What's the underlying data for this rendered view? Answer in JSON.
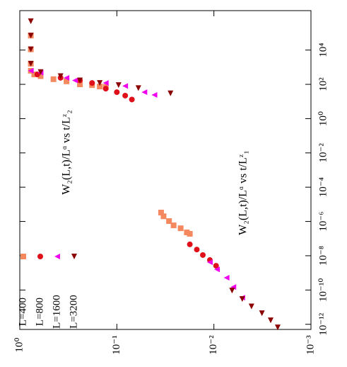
{
  "chart_data": {
    "type": "scatter",
    "xlog": true,
    "ylog": true,
    "annotations": [
      "W₂(L,t)/Lᵅ  vs  t/Lᶻ₂",
      "W₂(L,t)/Lᵅ  vs  t/Lᶻ₁"
    ],
    "xlim": [
      5e-13,
      2000000
    ],
    "ylim": [
      1,
      0.001
    ],
    "xticks": [
      {
        "value": 1e-12,
        "label": "10⁻¹²"
      },
      {
        "value": 1e-10,
        "label": "10⁻¹⁰"
      },
      {
        "value": 1e-08,
        "label": "10⁻⁸"
      },
      {
        "value": 1e-06,
        "label": "10⁻⁶"
      },
      {
        "value": 0.0001,
        "label": "10⁻⁴"
      },
      {
        "value": 0.01,
        "label": "10⁻²"
      },
      {
        "value": 1,
        "label": "10⁰"
      },
      {
        "value": 100,
        "label": "10²"
      },
      {
        "value": 10000,
        "label": "10⁴"
      }
    ],
    "yticks": [
      {
        "value": 1,
        "label": "10⁰"
      },
      {
        "value": 0.1,
        "label": "10⁻¹"
      },
      {
        "value": 0.01,
        "label": "10⁻²"
      },
      {
        "value": 0.001,
        "label": "10⁻³"
      }
    ],
    "series": [
      {
        "name": "L=400",
        "color": "#f4895f",
        "marker": "square",
        "x": [
          3.3e-06,
          2e-06,
          1.05e-06,
          5.9e-07,
          4e-07,
          2.3e-07,
          1.9e-07,
          70000,
          11000,
          1600,
          620,
          380,
          300,
          200,
          150,
          100,
          90,
          75,
          70
        ],
        "y": [
          0.035,
          0.033,
          0.029,
          0.026,
          0.022,
          0.019,
          0.0177,
          0.77,
          0.77,
          0.77,
          0.77,
          0.71,
          0.61,
          0.45,
          0.33,
          0.24,
          0.18,
          0.15,
          0.13
        ]
      },
      {
        "name": "L=800",
        "color": "#e0101a",
        "marker": "circle",
        "x": [
          4.6e-08,
          2.3e-08,
          1.1e-08,
          5.6e-09,
          2.6e-09,
          380,
          240,
          170,
          120,
          56,
          35,
          22,
          13
        ],
        "y": [
          0.0177,
          0.015,
          0.013,
          0.011,
          0.0095,
          0.66,
          0.38,
          0.24,
          0.18,
          0.13,
          0.1,
          0.082,
          0.07
        ]
      },
      {
        "name": "L=1600",
        "color": "#ee00ee",
        "marker": "triangle-left",
        "x": [
          4.2e-09,
          1.6e-09,
          5.2e-10,
          1.5e-10,
          3.6e-11,
          620,
          480,
          240,
          170,
          120,
          80,
          35,
          24
        ],
        "y": [
          0.011,
          0.0093,
          0.0074,
          0.0063,
          0.0051,
          0.77,
          0.61,
          0.33,
          0.27,
          0.13,
          0.082,
          0.052,
          0.041
        ]
      },
      {
        "name": "L=3200",
        "color": "#8b0000",
        "marker": "triangle-down",
        "x": [
          9.3e-11,
          3e-11,
          1.1e-11,
          4.4e-12,
          1.7e-12,
          6.6e-13,
          480000,
          70000,
          11000,
          1600,
          520,
          300,
          170,
          120,
          90,
          60,
          30
        ],
        "y": [
          0.0065,
          0.0051,
          0.0041,
          0.0032,
          0.0026,
          0.0022,
          0.77,
          0.77,
          0.77,
          0.77,
          0.61,
          0.38,
          0.24,
          0.15,
          0.096,
          0.06,
          0.028
        ]
      }
    ]
  }
}
